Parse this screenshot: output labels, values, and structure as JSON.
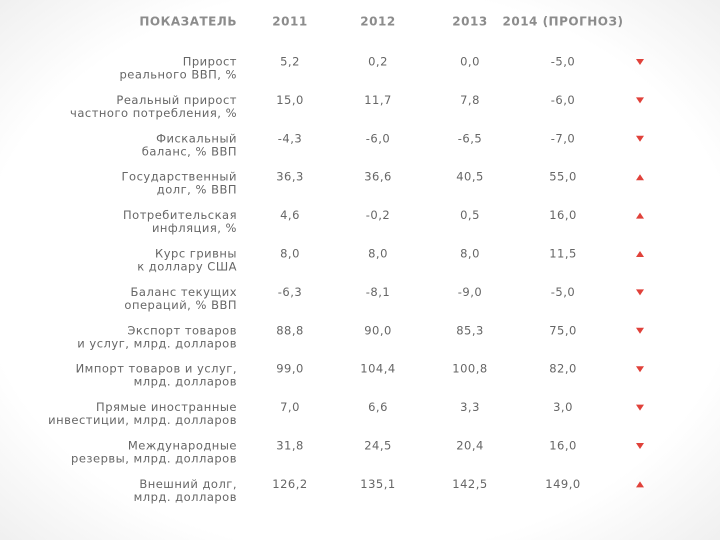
{
  "table": {
    "header": [
      "ПОКАЗАТЕЛЬ",
      "2011",
      "2012",
      "2013",
      "2014 (ПРОГНОЗ)"
    ],
    "rows": [
      {
        "label": [
          "Прирост",
          "реального ВВП, %"
        ],
        "values": [
          "5,2",
          "0,2",
          "0,0",
          "-5,0"
        ],
        "trend": "down"
      },
      {
        "label": [
          "Реальный прирост",
          "частного потребления, %"
        ],
        "values": [
          "15,0",
          "11,7",
          "7,8",
          "-6,0"
        ],
        "trend": "down"
      },
      {
        "label": [
          "Фискальный",
          "баланс, % ВВП"
        ],
        "values": [
          "-4,3",
          "-6,0",
          "-6,5",
          "-7,0"
        ],
        "trend": "down"
      },
      {
        "label": [
          "Государственный",
          "долг, % ВВП"
        ],
        "values": [
          "36,3",
          "36,6",
          "40,5",
          "55,0"
        ],
        "trend": "up"
      },
      {
        "label": [
          "Потребительская",
          "инфляция, %"
        ],
        "values": [
          "4,6",
          "-0,2",
          "0,5",
          "16,0"
        ],
        "trend": "up"
      },
      {
        "label": [
          "Курс гривны",
          "к доллару США"
        ],
        "values": [
          "8,0",
          "8,0",
          "8,0",
          "11,5"
        ],
        "trend": "up"
      },
      {
        "label": [
          "Баланс текущих",
          "операций, % ВВП"
        ],
        "values": [
          "-6,3",
          "-8,1",
          "-9,0",
          "-5,0"
        ],
        "trend": "down"
      },
      {
        "label": [
          "Экспорт товаров",
          "и услуг, млрд. долларов"
        ],
        "values": [
          "88,8",
          "90,0",
          "85,3",
          "75,0"
        ],
        "trend": "down"
      },
      {
        "label": [
          "Импорт товаров и услуг,",
          "млрд. долларов"
        ],
        "values": [
          "99,0",
          "104,4",
          "100,8",
          "82,0"
        ],
        "trend": "down"
      },
      {
        "label": [
          "Прямые иностранные",
          "инвестиции, млрд. долларов"
        ],
        "values": [
          "7,0",
          "6,6",
          "3,3",
          "3,0"
        ],
        "trend": "down"
      },
      {
        "label": [
          "Международные",
          "резервы, млрд. долларов"
        ],
        "values": [
          "31,8",
          "24,5",
          "20,4",
          "16,0"
        ],
        "trend": "down"
      },
      {
        "label": [
          "Внешний долг,",
          "млрд. долларов"
        ],
        "values": [
          "126,2",
          "135,1",
          "142,5",
          "149,0"
        ],
        "trend": "up"
      }
    ],
    "trend_color": "#e0413a"
  }
}
